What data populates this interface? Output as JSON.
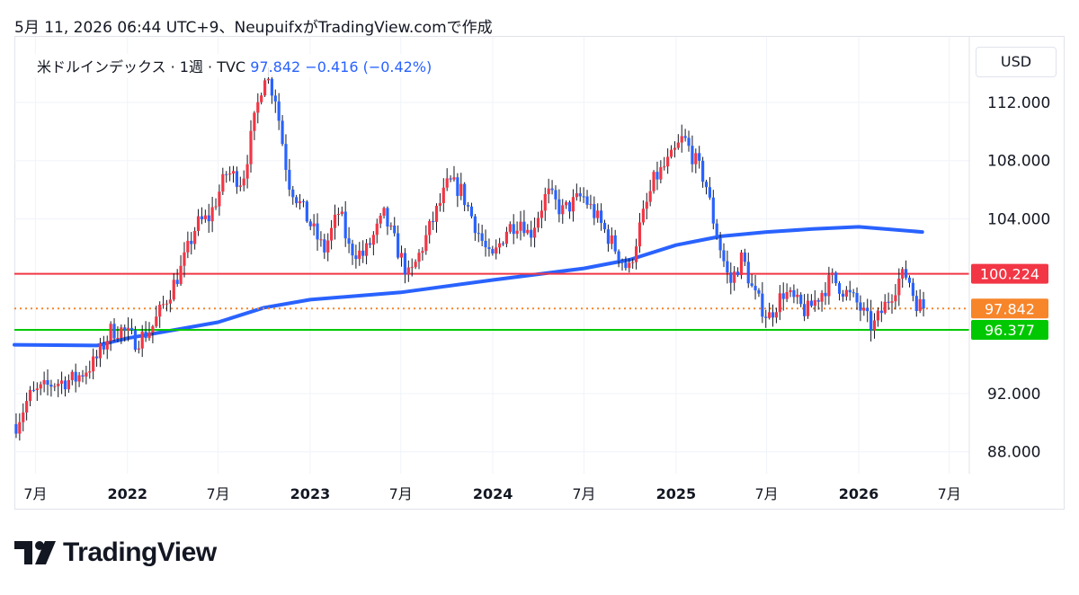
{
  "header": {
    "text": "5月 11, 2026 06:44 UTC+9、NeupuifxがTradingView.comで作成"
  },
  "legend": {
    "symbol": "米ドルインデックス · 1週 · TVC",
    "last": "97.842",
    "change": "−0.416 (−0.42%)"
  },
  "currency": "USD",
  "brand": {
    "name": "TradingView"
  },
  "colors": {
    "up": "#f23645",
    "down": "#2962ff",
    "wick": "#131722",
    "ma": "#2962ff",
    "resistance": "#f23645",
    "support": "#00c800",
    "last_price": "#f7852a",
    "grid": "#f0f3fa",
    "text": "#131722"
  },
  "chart_data": {
    "type": "candlestick",
    "ylim": [
      86.5,
      116.5
    ],
    "y_ticks": [
      "88.000",
      "92.000",
      "104.000",
      "108.000",
      "112.000"
    ],
    "x_ticks": [
      {
        "date": "2021-07-01",
        "label": "7月",
        "bold": false
      },
      {
        "date": "2022-01-01",
        "label": "2022",
        "bold": true
      },
      {
        "date": "2022-07-01",
        "label": "7月",
        "bold": false
      },
      {
        "date": "2023-01-01",
        "label": "2023",
        "bold": true
      },
      {
        "date": "2023-07-01",
        "label": "7月",
        "bold": false
      },
      {
        "date": "2024-01-01",
        "label": "2024",
        "bold": true
      },
      {
        "date": "2024-07-01",
        "label": "7月",
        "bold": false
      },
      {
        "date": "2025-01-01",
        "label": "2025",
        "bold": true
      },
      {
        "date": "2025-07-01",
        "label": "7月",
        "bold": false
      },
      {
        "date": "2026-01-01",
        "label": "2026",
        "bold": true
      },
      {
        "date": "2026-07-01",
        "label": "7月",
        "bold": false
      }
    ],
    "x_range": [
      "2021-05-20",
      "2026-08-10"
    ],
    "price_path": [
      [
        "2021-05-20",
        89.9
      ],
      [
        "2021-06-15",
        91.8
      ],
      [
        "2021-08-01",
        92.7
      ],
      [
        "2021-09-15",
        93.0
      ],
      [
        "2021-10-25",
        94.2
      ],
      [
        "2021-11-25",
        96.3
      ],
      [
        "2021-12-15",
        96.4
      ],
      [
        "2022-01-15",
        95.6
      ],
      [
        "2022-02-15",
        96.5
      ],
      [
        "2022-03-15",
        98.4
      ],
      [
        "2022-04-15",
        100.6
      ],
      [
        "2022-05-15",
        103.6
      ],
      [
        "2022-06-10",
        104.1
      ],
      [
        "2022-07-15",
        107.2
      ],
      [
        "2022-08-15",
        106.6
      ],
      [
        "2022-09-28",
        114.1
      ],
      [
        "2022-10-20",
        112.4
      ],
      [
        "2022-11-15",
        106.6
      ],
      [
        "2022-12-20",
        104.2
      ],
      [
        "2023-01-25",
        101.8
      ],
      [
        "2023-02-25",
        104.6
      ],
      [
        "2023-03-15",
        102.0
      ],
      [
        "2023-04-15",
        101.5
      ],
      [
        "2023-05-25",
        104.2
      ],
      [
        "2023-07-15",
        99.9
      ],
      [
        "2023-09-01",
        104.0
      ],
      [
        "2023-10-01",
        106.5
      ],
      [
        "2023-10-25",
        106.0
      ],
      [
        "2023-12-25",
        101.0
      ],
      [
        "2024-01-25",
        103.3
      ],
      [
        "2024-02-25",
        104.0
      ],
      [
        "2024-03-10",
        102.8
      ],
      [
        "2024-04-15",
        105.8
      ],
      [
        "2024-05-15",
        104.5
      ],
      [
        "2024-06-25",
        105.6
      ],
      [
        "2024-07-25",
        104.0
      ],
      [
        "2024-09-25",
        100.4
      ],
      [
        "2024-10-15",
        103.2
      ],
      [
        "2024-11-15",
        106.7
      ],
      [
        "2024-12-20",
        108.2
      ],
      [
        "2025-01-12",
        109.6
      ],
      [
        "2025-02-25",
        106.6
      ],
      [
        "2025-03-15",
        103.6
      ],
      [
        "2025-04-15",
        99.5
      ],
      [
        "2025-05-10",
        101.4
      ],
      [
        "2025-06-01",
        98.9
      ],
      [
        "2025-07-01",
        97.2
      ],
      [
        "2025-08-01",
        99.0
      ],
      [
        "2025-09-15",
        97.6
      ],
      [
        "2025-11-05",
        99.9
      ],
      [
        "2025-12-25",
        98.2
      ],
      [
        "2026-01-25",
        96.5
      ],
      [
        "2026-02-15",
        97.8
      ],
      [
        "2026-03-20",
        99.9
      ],
      [
        "2026-04-05",
        100.2
      ],
      [
        "2026-04-20",
        98.4
      ],
      [
        "2026-05-08",
        97.842
      ]
    ],
    "moving_average": [
      [
        "2021-05-20",
        95.35
      ],
      [
        "2021-11-01",
        95.3
      ],
      [
        "2022-01-01",
        95.8
      ],
      [
        "2022-07-01",
        96.9
      ],
      [
        "2022-10-01",
        97.9
      ],
      [
        "2023-01-01",
        98.45
      ],
      [
        "2023-07-01",
        98.95
      ],
      [
        "2024-01-01",
        99.8
      ],
      [
        "2024-07-01",
        100.6
      ],
      [
        "2024-10-01",
        101.2
      ],
      [
        "2025-01-01",
        102.2
      ],
      [
        "2025-04-01",
        102.8
      ],
      [
        "2025-07-01",
        103.1
      ],
      [
        "2025-10-01",
        103.3
      ],
      [
        "2026-01-01",
        103.45
      ],
      [
        "2026-05-08",
        103.1
      ]
    ],
    "levels": [
      {
        "name": "resistance",
        "value": 100.224,
        "label": "100.224",
        "style": "solid"
      },
      {
        "name": "last-price",
        "value": 97.842,
        "label": "97.842",
        "style": "dotted"
      },
      {
        "name": "support",
        "value": 96.377,
        "label": "96.377",
        "style": "solid"
      }
    ]
  }
}
